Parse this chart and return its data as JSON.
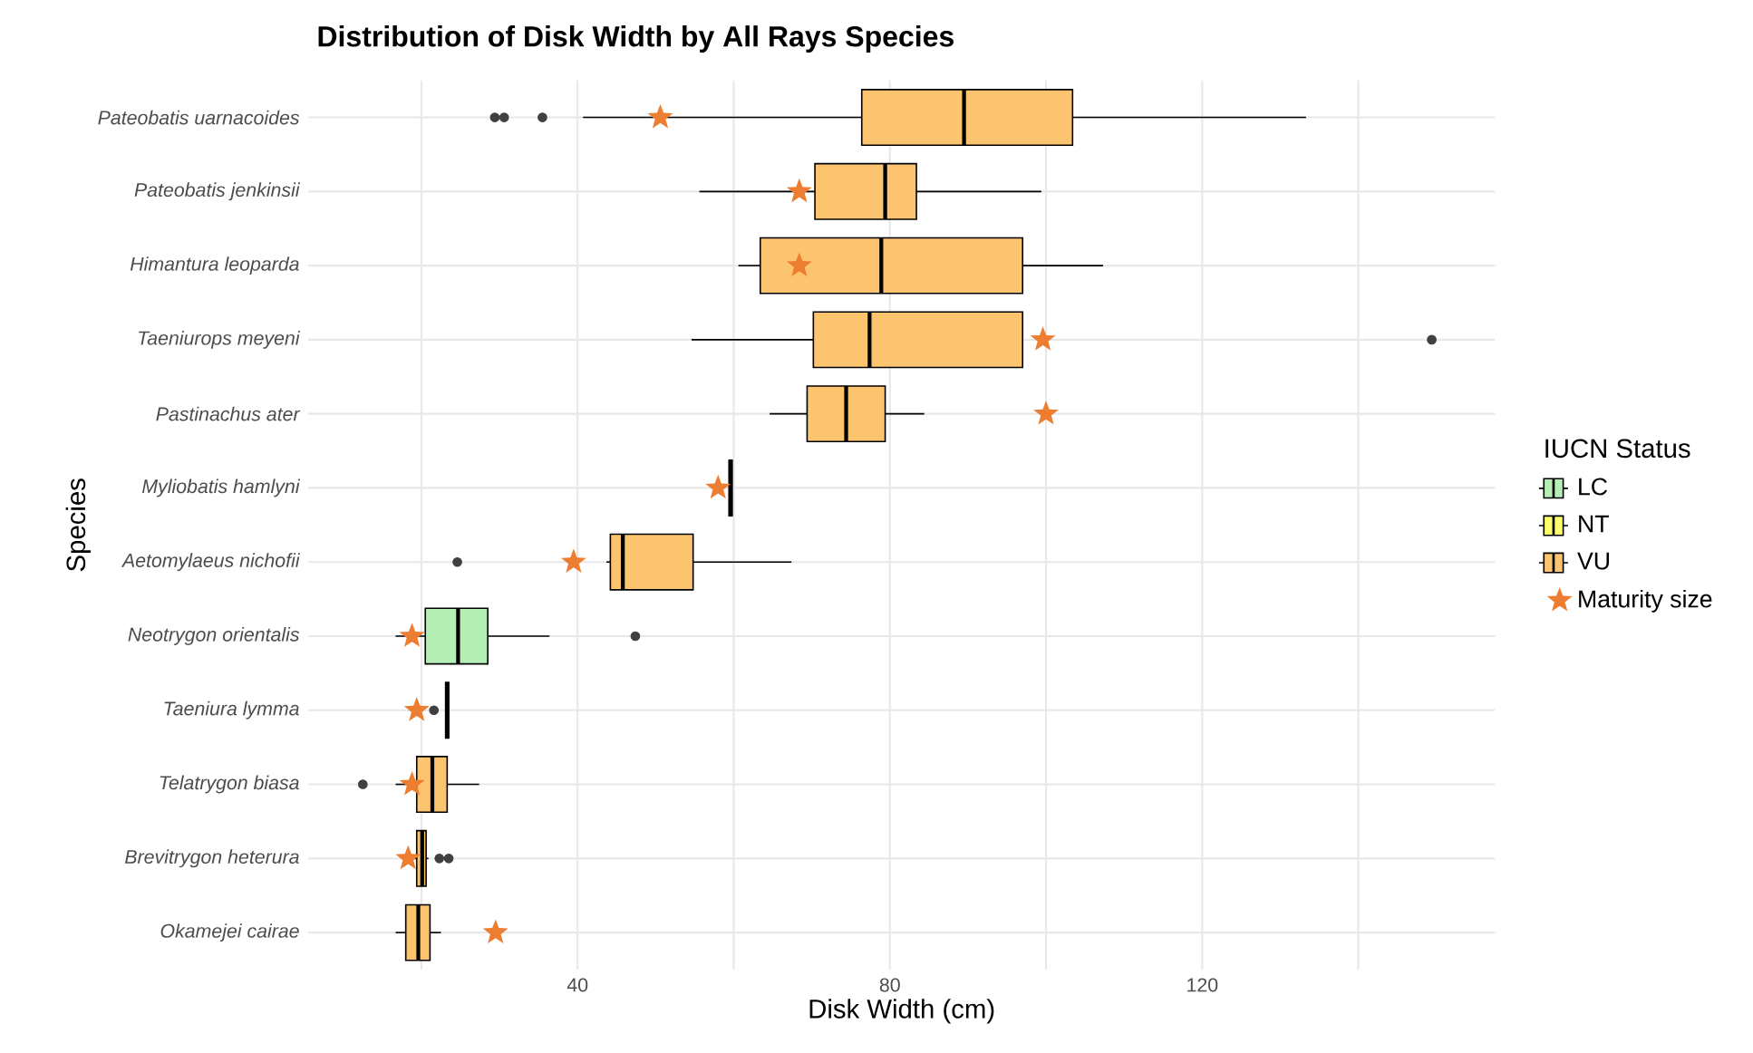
{
  "chart_data": {
    "type": "box",
    "orientation": "horizontal",
    "title": "Distribution of Disk Width by All Rays Species",
    "xlabel": "Disk Width (cm)",
    "ylabel": "Species",
    "legend_title": "IUCN Status",
    "legend": "right",
    "grid": true,
    "categories": [
      "Pateobatis uarnacoides",
      "Pateobatis jenkinsii",
      "Himantura leoparda",
      "Taeniurops meyeni",
      "Pastinachus ater",
      "Myliobatis hamlyni",
      "Aetomylaeus nichofii",
      "Neotrygon orientalis",
      "Taeniura lymma",
      "Telatrygon biasa",
      "Brevitrygon heterura",
      "Okamejei cairae"
    ],
    "xlim": [
      5.5,
      157.5
    ],
    "xticks": [
      {
        "value": 20,
        "label": null
      },
      40,
      {
        "value": 60,
        "label": null
      },
      80,
      {
        "value": 100,
        "label": null
      },
      120,
      {
        "value": 140,
        "label": null
      }
    ],
    "series": [
      {
        "name": "LC",
        "color": "#b6efb6",
        "boxes": [
          null,
          null,
          null,
          null,
          null,
          null,
          null,
          {
            "low": 16.7,
            "q1": 20.5,
            "median": 24.7,
            "q3": 28.5,
            "high": 36.4,
            "outliers": [
              47.4
            ]
          },
          null,
          null,
          null,
          null
        ]
      },
      {
        "name": "NT",
        "color": "#ffff6b",
        "boxes": [
          null,
          null,
          null,
          null,
          null,
          null,
          null,
          null,
          null,
          null,
          null,
          null
        ]
      },
      {
        "name": "VU",
        "color": "#fdc46f",
        "boxes": [
          {
            "low": 40.7,
            "q1": 76.4,
            "median": 89.5,
            "q3": 103.4,
            "high": 133.3,
            "outliers": [
              29.4,
              30.6,
              35.5
            ]
          },
          {
            "low": 55.6,
            "q1": 70.4,
            "median": 79.4,
            "q3": 83.4,
            "high": 99.4
          },
          {
            "low": 60.6,
            "q1": 63.4,
            "median": 78.9,
            "q3": 97.0,
            "high": 107.3
          },
          {
            "low": 54.6,
            "q1": 70.2,
            "median": 77.4,
            "q3": 97.0,
            "high": 97.0,
            "outliers": [
              149.4
            ]
          },
          {
            "low": 64.6,
            "q1": 69.4,
            "median": 74.4,
            "q3": 79.4,
            "high": 84.4
          },
          {
            "low": 59.4,
            "q1": 59.4,
            "median": 59.6,
            "q3": 59.8,
            "high": 59.8
          },
          {
            "low": 43.7,
            "q1": 44.2,
            "median": 45.8,
            "q3": 54.8,
            "high": 67.4,
            "outliers": [
              24.6
            ]
          },
          null,
          {
            "low": 23.1,
            "q1": 23.1,
            "median": 23.3,
            "q3": 23.5,
            "high": 23.5,
            "outliers": [
              21.6
            ]
          },
          {
            "low": 16.7,
            "q1": 19.4,
            "median": 21.4,
            "q3": 23.3,
            "high": 27.4,
            "outliers": [
              12.5
            ]
          },
          {
            "low": 19.0,
            "q1": 19.4,
            "median": 20.1,
            "q3": 20.6,
            "high": 20.9,
            "outliers": [
              22.3,
              23.5
            ]
          },
          {
            "low": 16.7,
            "q1": 18.0,
            "median": 19.6,
            "q3": 21.1,
            "high": 22.5
          }
        ]
      },
      {
        "name": "Maturity size",
        "type": "scatter",
        "marker": "star",
        "color": "#ed7d31",
        "values": [
          50.6,
          68.4,
          68.4,
          99.6,
          100,
          58.0,
          39.5,
          18.8,
          19.4,
          18.8,
          18.3,
          29.5
        ]
      }
    ]
  }
}
